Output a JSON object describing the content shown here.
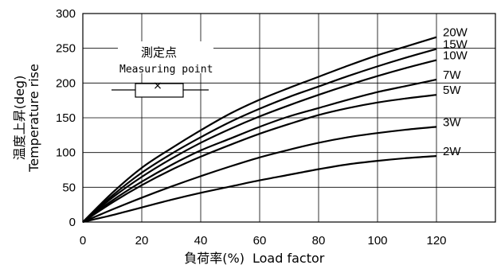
{
  "chart_data": {
    "type": "line",
    "xlabel_jp": "負荷率(%)",
    "xlabel_en": "Load factor",
    "ylabel_jp": "温度上昇(deg)",
    "ylabel_en": "Temperature rise",
    "xlim": [
      0,
      140
    ],
    "ylim": [
      0,
      300
    ],
    "x_ticks": [
      0,
      20,
      40,
      60,
      80,
      100,
      120
    ],
    "y_ticks": [
      0,
      50,
      100,
      150,
      200,
      250,
      300
    ],
    "grid": true,
    "x": [
      0,
      10,
      20,
      30,
      40,
      50,
      60,
      70,
      80,
      90,
      100,
      110,
      120
    ],
    "series": [
      {
        "name": "20W",
        "values": [
          0,
          42,
          78,
          106,
          132,
          156,
          176,
          193,
          209,
          225,
          240,
          253,
          266
        ]
      },
      {
        "name": "15W",
        "values": [
          0,
          38,
          71,
          98,
          122,
          144,
          163,
          180,
          195,
          210,
          224,
          237,
          249
        ]
      },
      {
        "name": "10W",
        "values": [
          0,
          35,
          65,
          91,
          114,
          134,
          152,
          168,
          183,
          197,
          210,
          222,
          233
        ]
      },
      {
        "name": "7W",
        "values": [
          0,
          31,
          58,
          82,
          103,
          120,
          137,
          152,
          164,
          176,
          187,
          196,
          205
        ]
      },
      {
        "name": "5W",
        "values": [
          0,
          28,
          53,
          75,
          94,
          111,
          127,
          141,
          154,
          164,
          172,
          178,
          183
        ]
      },
      {
        "name": "3W",
        "values": [
          0,
          18,
          35,
          51,
          66,
          80,
          93,
          104,
          114,
          122,
          128,
          133,
          137
        ]
      },
      {
        "name": "2W",
        "values": [
          0,
          10,
          21,
          32,
          42,
          51,
          60,
          68,
          76,
          83,
          88,
          92,
          95
        ]
      }
    ],
    "annotation": {
      "label_jp": "測定点",
      "label_en": "Measuring point",
      "marker": "×"
    },
    "colors": {
      "line": "#000000",
      "grid": "#000000",
      "background": "#ffffff"
    }
  }
}
